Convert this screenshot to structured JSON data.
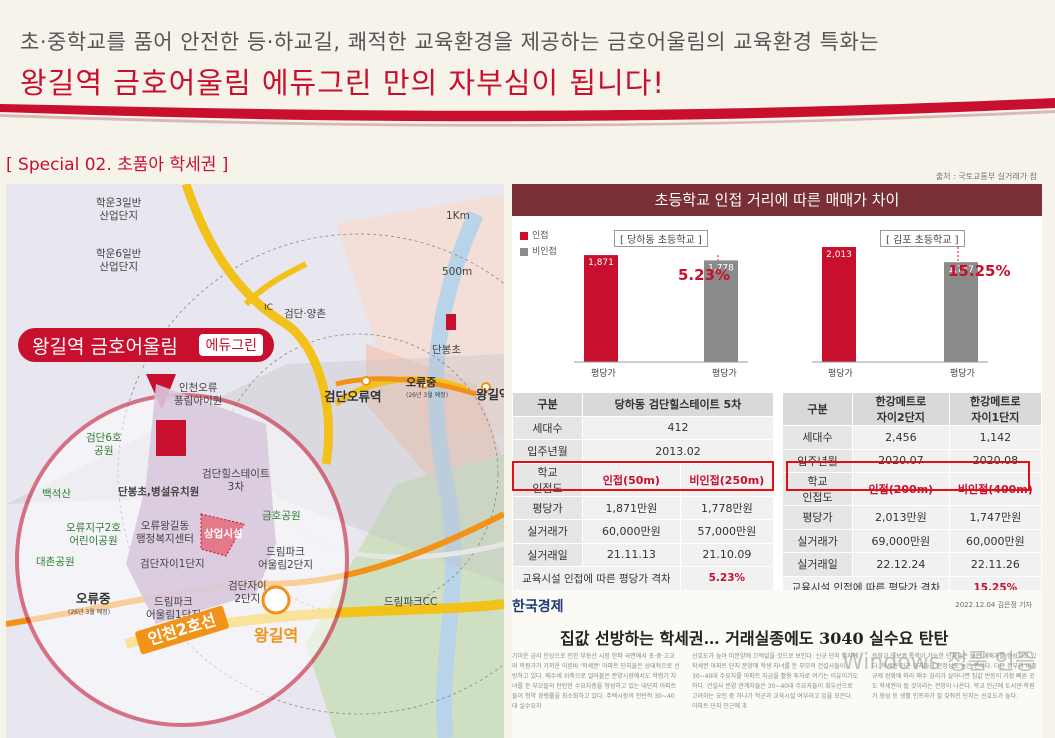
{
  "header": {
    "subtitle": "초·중학교를 품어 안전한 등·하교길, 쾌적한 교육환경을 제공하는 금호어울림의 교육환경 특화는",
    "title": "왕길역 금호어울림 에듀그린 만의 자부심이 됩니다!"
  },
  "section_title": "[ Special 02. 초품아 학세권 ]",
  "source_note": "출처 : 국토교통부 실거래가 참",
  "map": {
    "callout_name": "왕길역 금호어울림",
    "callout_tag": "에듀그린",
    "labels": {
      "hakeum3": "학운3일반\n산업단지",
      "hakeum6": "학운6일반\n산업단지",
      "dist_1km": "1Km",
      "dist_500m": "500m",
      "ic": "IC",
      "geomdan_yangchon": "검단·양촌",
      "danbong": "단봉초",
      "geomdan_oryu": "검단오류역",
      "oryu_jung_top": "오류중",
      "oryu_jung_top_note": "(26년 3월 예정)",
      "wanggil_top": "왕길역",
      "dreampark_cc": "드림파크CC",
      "incheon_oryu": "인천오류\n풍림아이원",
      "geomdan6": "검단6호\n공원",
      "baekseok": "백석산",
      "danbong_kinder": "단봉초,병설유치원",
      "geomdan_hills": "검단힐스테이트\n3차",
      "geum_park": "금호공원",
      "commercial": "상업시설",
      "oryu_center": "오류왕길동\n행정복지센터",
      "oryu_jigu": "오류지구2호\n어린이공원",
      "daechon": "대촌공원",
      "geomdan1": "검단자이1단지",
      "dreampark2": "드림파크\n어울림2단지",
      "oryu_jung": "오류중",
      "oryu_jung_note": "(26년 3월 예정)",
      "dreampark1": "드림파크\n어울림1단지",
      "geomdan2": "검단자이\n2단지",
      "line2": "인천2호선",
      "wanggil": "왕길역"
    }
  },
  "panel": {
    "title": "초등학교 인접 거리에 따른 매매가 차이",
    "legend": {
      "adjacent": "인접",
      "non_adjacent": "비인접"
    },
    "colors": {
      "adjacent": "#c8102e",
      "non_adjacent": "#8a8a8a"
    },
    "schools": [
      "[ 당하동 초등학교 ]",
      "[ 김포 초등학교 ]"
    ],
    "xlabel": "평당가"
  },
  "chart_data": [
    {
      "type": "bar",
      "title": "[ 당하동 초등학교 ]",
      "categories": [
        "평당가",
        "평당가"
      ],
      "series": [
        {
          "name": "인접",
          "values": [
            1871,
            null
          ]
        },
        {
          "name": "비인접",
          "values": [
            null,
            1778
          ]
        }
      ],
      "value_labels": [
        "1,871",
        "1,778"
      ],
      "annotation": "5.23%",
      "ylim": [
        0,
        2100
      ]
    },
    {
      "type": "bar",
      "title": "[ 김포 초등학교 ]",
      "categories": [
        "평당가",
        "평당가"
      ],
      "series": [
        {
          "name": "인접",
          "values": [
            2013,
            null
          ]
        },
        {
          "name": "비인접",
          "values": [
            null,
            1747
          ]
        }
      ],
      "value_labels": [
        "2,013",
        "1,747"
      ],
      "annotation": "15.25%",
      "ylim": [
        0,
        2100
      ]
    }
  ],
  "table_left": {
    "header": [
      "구분",
      "당하동 검단힐스테이트 5차"
    ],
    "rows": [
      {
        "label": "세대수",
        "values": [
          "412"
        ]
      },
      {
        "label": "입주년월",
        "values": [
          "2013.02"
        ]
      },
      {
        "label": "학교\n인접도",
        "values": [
          "인접(50m)",
          "비인접(250m)"
        ]
      },
      {
        "label": "평당가",
        "values": [
          "1,871만원",
          "1,778만원"
        ]
      },
      {
        "label": "실거래가",
        "values": [
          "60,000만원",
          "57,000만원"
        ]
      },
      {
        "label": "실거래일",
        "values": [
          "21.11.13",
          "21.10.09"
        ]
      }
    ],
    "footer_label": "교육시설 인접에 따른 평당가 격차",
    "footer_value": "5.23%"
  },
  "table_right": {
    "header": [
      "구분",
      "한강메트로\n자이2단지",
      "한강메트로\n자이1단지"
    ],
    "rows": [
      {
        "label": "세대수",
        "values": [
          "2,456",
          "1,142"
        ]
      },
      {
        "label": "입주년월",
        "values": [
          "2020.07",
          "2020.08"
        ]
      },
      {
        "label": "학교\n인접도",
        "values": [
          "인접(200m)",
          "비인접(400m)"
        ]
      },
      {
        "label": "평당가",
        "values": [
          "2,013만원",
          "1,747만원"
        ]
      },
      {
        "label": "실거래가",
        "values": [
          "69,000만원",
          "60,000만원"
        ]
      },
      {
        "label": "실거래일",
        "values": [
          "22.12.24",
          "22.11.26"
        ]
      }
    ],
    "footer_label": "교육시설 인접에 따른 평당가 격차",
    "footer_value": "15.25%"
  },
  "news": {
    "logo": "한국경제",
    "date": "2022.12.04 김은정 기자",
    "headline": "집값 선방하는 학세권… 거래실종에도 3040 실수요 탄탄",
    "col1": "기미운 금리 인상으로 인한 부동산 시장 한파 국면에서 초·중·고교와 학원가가 가까운 이른바 '학세권' 아파트 단지들은 상대적으로 선방하고 있다. 매수세 위축으로 얼어붙은 분양시장에서도 학령기 자녀를 둔 부모들의 탄탄한 수요자층을 형성하고 있는 대단지 아파트들이 청약 경쟁률을 최소화하고 있다. 주택시장의 전반적 30~40대 실수요자",
    "col2": "선호도가 높아 미분양에 끄떡없을 것으로 보인다. 신규 단지 입지에 학세권 아파트 단지 분양에 학생 자녀를 둔 부모의 건설사들이 30~40대 수요자를 아파트 지금을 활용 투자로 여기는 이유이기도 하다. 건설사 분양 관계자들은 30~40대 수요자들이 최우선으로 고려하는 요인 중 하나가 학군과 교육시설 여부라고 입을 모은다. 아파트 단지 인근에 초",
    "col3": "등학교 도보권 통학이 가능한 단지들은 높은 매매가를 형성하고 있다. 학세권 인근 단지들의 안정성도 높은 편이다. 다만 정부의 대출 규제 완화에 따라 매수 심리가 살아나면 집값 반등이 가장 빠른 곳도 학세권이 될 것이라는 전망이 나온다. 학교 인근에 도서관·학원가 형성 등 생활 인프라가 잘 갖춰진 단지는 선호도가 높다."
  },
  "watermark": "Windows 정품 인증"
}
